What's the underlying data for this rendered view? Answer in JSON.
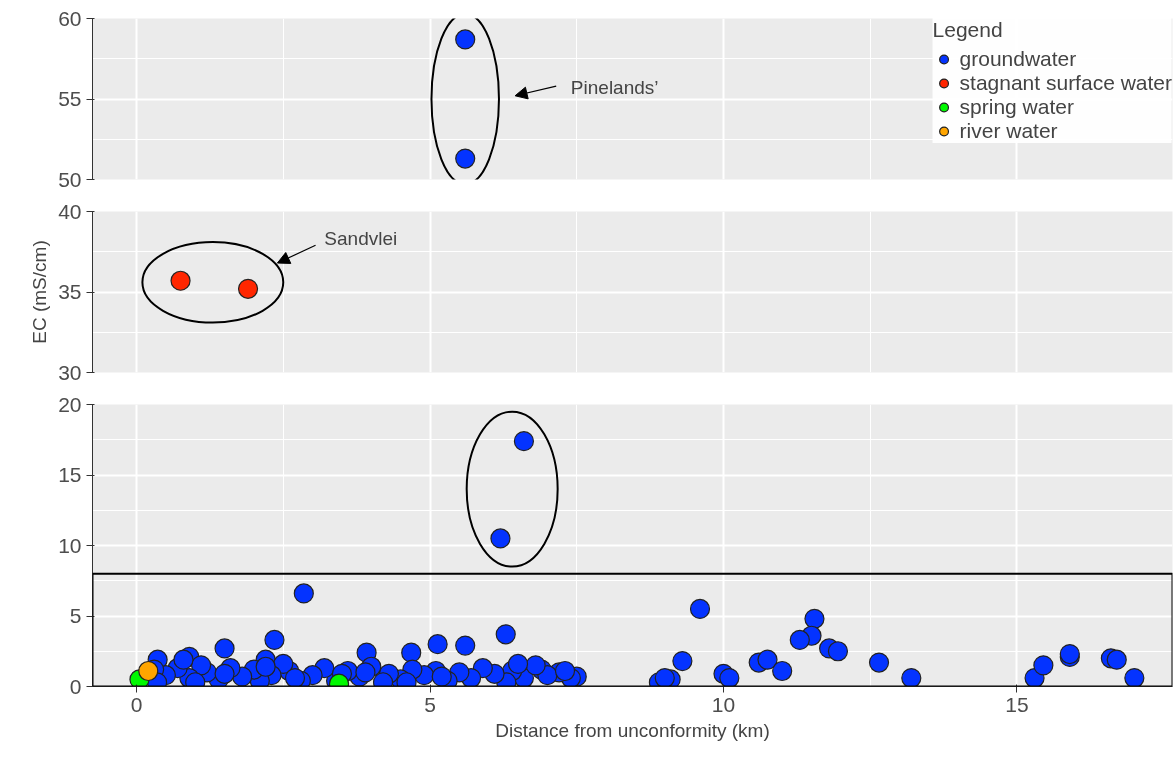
{
  "chart_data": [
    {
      "type": "scatter",
      "xlim": [
        -0.75,
        17.65
      ],
      "ylim": [
        50,
        60
      ],
      "yticks": [
        50,
        55,
        60
      ],
      "xticks": [
        0,
        5,
        10,
        15
      ],
      "tick_labels": "y",
      "grid": true,
      "marker": "circle",
      "legend": "top right",
      "legend_title": "Legend",
      "annotations": [
        "Pinelands’"
      ],
      "series": [
        {
          "name": "groundwater",
          "color": "#0433ff",
          "x": [
            5.6,
            5.6
          ],
          "values": [
            58.7,
            51.3
          ]
        }
      ]
    },
    {
      "type": "scatter",
      "xlim": [
        -0.75,
        17.65
      ],
      "ylim": [
        30,
        40
      ],
      "yticks": [
        30,
        35,
        40
      ],
      "xticks": [
        0,
        5,
        10,
        15
      ],
      "tick_labels": "y",
      "grid": true,
      "marker": "circle",
      "legend": "top right",
      "ylabel": "EC (mS/cm)",
      "annotations": [
        "Sandvlei"
      ],
      "series": [
        {
          "name": "stagnant surface water",
          "color": "#ff2600",
          "x": [
            0.75,
            1.9
          ],
          "values": [
            35.7,
            35.2
          ]
        }
      ]
    },
    {
      "type": "scatter",
      "xlim": [
        -0.75,
        17.65
      ],
      "ylim": [
        0,
        20
      ],
      "yticks": [
        0,
        5,
        10,
        15,
        20
      ],
      "xticks": [
        0,
        5,
        10,
        15
      ],
      "grid": true,
      "marker": "circle",
      "legend": "top right",
      "xlabel": "Distance from unconformity (km)",
      "series": [
        {
          "name": "groundwater",
          "color": "#0433ff",
          "x": [
            6.6,
            6.2,
            2.85,
            9.6,
            11.55,
            6.29,
            11.5,
            11.3,
            2.35,
            5.13,
            5.6,
            4.68,
            3.92,
            1.5,
            0.36,
            0.9,
            2.2,
            11.8,
            11.95,
            12.65,
            10.6,
            10.75,
            9.3,
            10.0,
            10.1,
            11.0,
            13.2,
            15.3,
            15.45,
            15.9,
            15.9,
            16.6,
            16.7,
            17.0,
            8.9,
            9.1,
            9.0,
            7.5,
            7.4,
            7.2,
            6.9,
            7.0,
            6.6,
            6.4,
            6.3,
            6.1,
            5.9,
            5.7,
            5.5,
            5.3,
            5.1,
            4.9,
            4.7,
            4.5,
            4.3,
            4.2,
            4.0,
            3.8,
            3.6,
            3.4,
            3.2,
            3.0,
            2.8,
            2.6,
            2.5,
            2.3,
            2.1,
            2.0,
            1.8,
            1.6,
            1.4,
            1.2,
            1.1,
            0.9,
            0.7,
            0.5,
            0.3,
            0.35,
            1.0,
            1.5,
            2.7,
            3.5,
            4.6,
            5.2,
            6.8,
            7.3,
            6.5,
            3.9,
            2.2,
            0.8
          ],
          "values": [
            17.4,
            10.5,
            6.6,
            5.5,
            4.8,
            3.7,
            3.6,
            3.3,
            3.3,
            3.0,
            2.9,
            2.4,
            2.4,
            2.7,
            1.9,
            2.1,
            1.9,
            2.7,
            2.5,
            1.7,
            1.7,
            1.9,
            1.8,
            0.9,
            0.6,
            1.1,
            0.6,
            0.6,
            1.5,
            2.1,
            2.3,
            2.0,
            1.9,
            0.6,
            0.3,
            0.5,
            0.6,
            0.7,
            0.6,
            1.0,
            1.2,
            0.8,
            0.6,
            1.1,
            0.3,
            0.9,
            1.3,
            0.6,
            1.0,
            0.4,
            1.1,
            0.8,
            1.2,
            0.5,
            0.9,
            0.3,
            1.4,
            0.7,
            1.1,
            0.4,
            1.3,
            0.8,
            0.4,
            1.1,
            1.6,
            0.8,
            0.4,
            1.2,
            0.7,
            1.3,
            0.5,
            1.0,
            1.5,
            0.6,
            1.3,
            0.8,
            1.2,
            0.3,
            0.3,
            0.9,
            0.6,
            0.9,
            0.3,
            0.7,
            1.5,
            1.1,
            1.6,
            1.0,
            1.4,
            1.9
          ]
        },
        {
          "name": "spring water",
          "color": "#00f900",
          "x": [
            0.05,
            3.45
          ],
          "values": [
            0.5,
            0.2
          ]
        },
        {
          "name": "river water",
          "color": "#ffa500",
          "x": [
            0.2
          ],
          "values": [
            1.1
          ]
        }
      ]
    }
  ]
}
